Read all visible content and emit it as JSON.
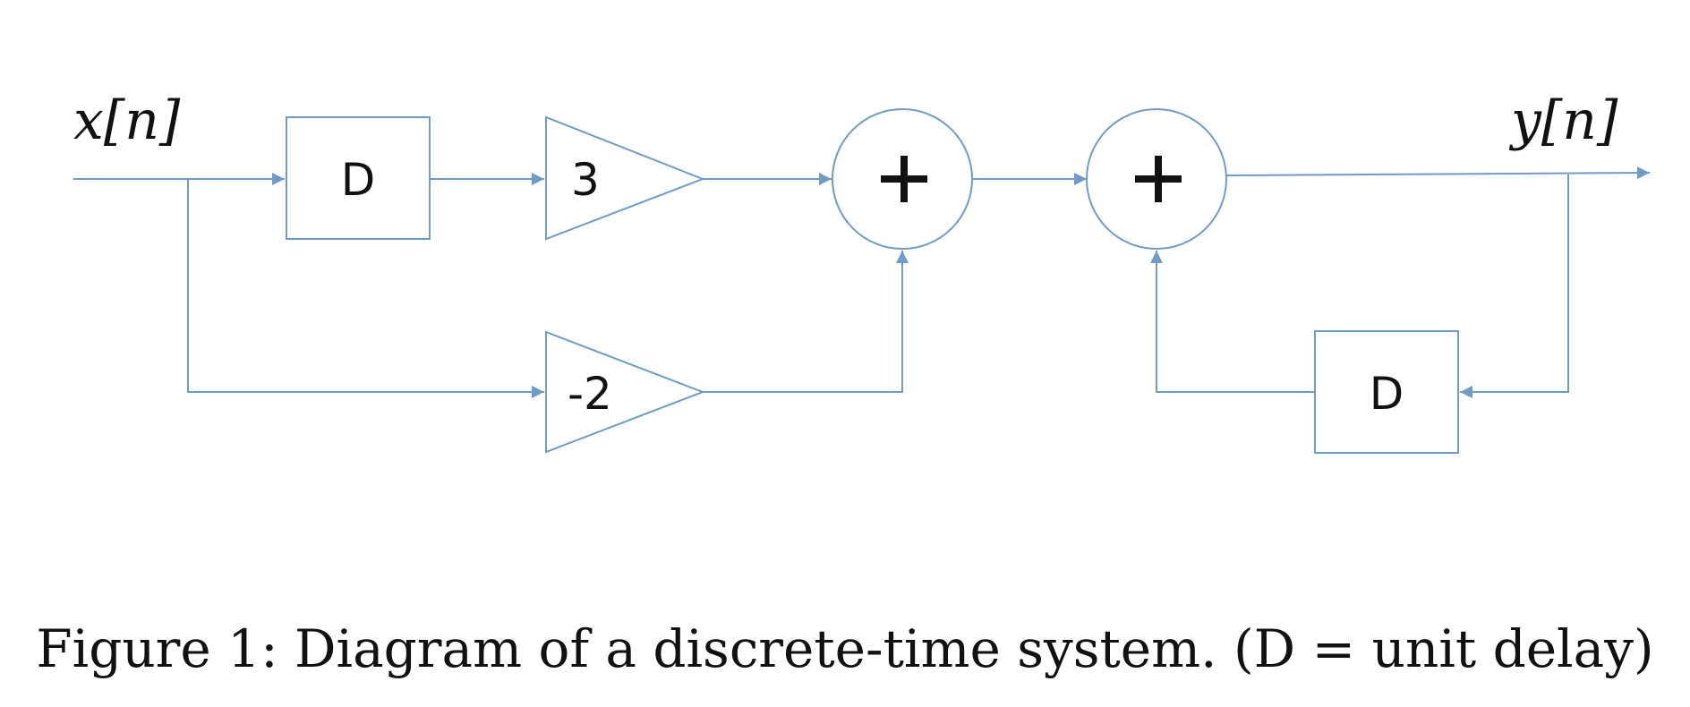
{
  "signals": {
    "input": "x[n]",
    "output": "y[n]"
  },
  "blocks": {
    "delay_top": "D",
    "gain_top": "3",
    "gain_bottom": "-2",
    "delay_feedback": "D"
  },
  "caption": "Figure 1: Diagram of a discrete-time system. (D = unit delay)",
  "colors": {
    "wire": "#6f9bc6",
    "text": "#111111"
  }
}
